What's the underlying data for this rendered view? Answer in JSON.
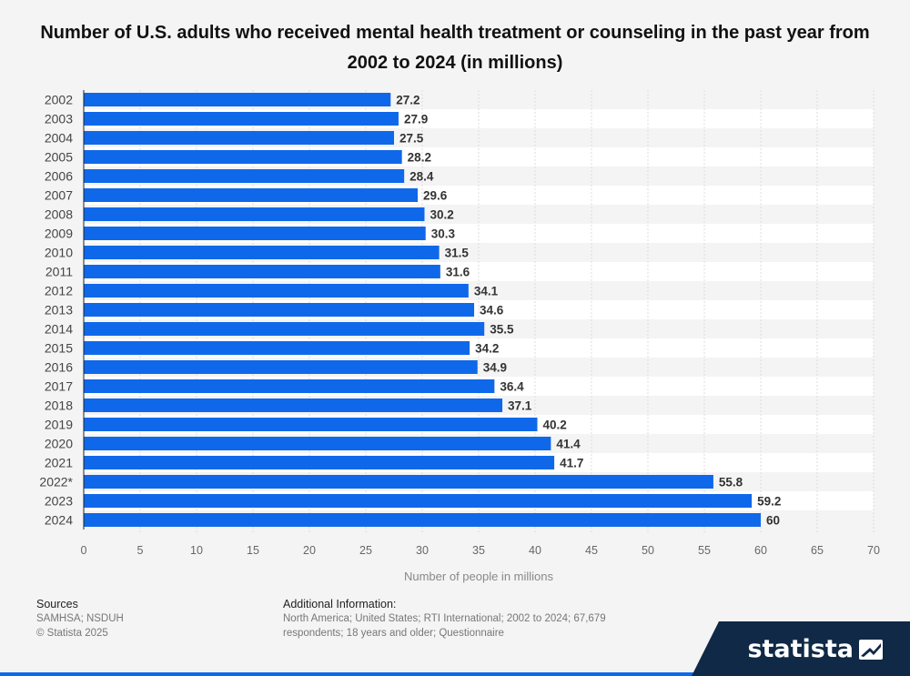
{
  "title": "Number of U.S. adults who received mental health treatment or counseling in the past year from 2002 to 2024 (in millions)",
  "chart_data": {
    "type": "bar",
    "orientation": "horizontal",
    "categories": [
      "2002",
      "2003",
      "2004",
      "2005",
      "2006",
      "2007",
      "2008",
      "2009",
      "2010",
      "2011",
      "2012",
      "2013",
      "2014",
      "2015",
      "2016",
      "2017",
      "2018",
      "2019",
      "2020",
      "2021",
      "2022*",
      "2023",
      "2024"
    ],
    "values": [
      27.2,
      27.9,
      27.5,
      28.2,
      28.4,
      29.6,
      30.2,
      30.3,
      31.5,
      31.6,
      34.1,
      34.6,
      35.5,
      34.2,
      34.9,
      36.4,
      37.1,
      40.2,
      41.4,
      41.7,
      55.8,
      59.2,
      60
    ],
    "value_labels": [
      "27.2",
      "27.9",
      "27.5",
      "28.2",
      "28.4",
      "29.6",
      "30.2",
      "30.3",
      "31.5",
      "31.6",
      "34.1",
      "34.6",
      "35.5",
      "34.2",
      "34.9",
      "36.4",
      "37.1",
      "40.2",
      "41.4",
      "41.7",
      "55.8",
      "59.2",
      "60"
    ],
    "xlabel": "Number of people in millions",
    "xlim": [
      0,
      70
    ],
    "xticks": [
      "0",
      "5",
      "10",
      "15",
      "20",
      "25",
      "30",
      "35",
      "40",
      "45",
      "50",
      "55",
      "60",
      "65",
      "70"
    ],
    "grid": true,
    "bar_color": "#0f68ea"
  },
  "footer": {
    "sources_heading": "Sources",
    "sources_line1": "SAMHSA; NSDUH",
    "sources_line2": "© Statista 2025",
    "additional_heading": "Additional Information:",
    "additional_text": "North America; United States; RTI International; 2002 to 2024; 67,679 respondents; 18 years and older; Questionnaire"
  },
  "brand": {
    "name": "statista",
    "color": "#0f2946"
  }
}
